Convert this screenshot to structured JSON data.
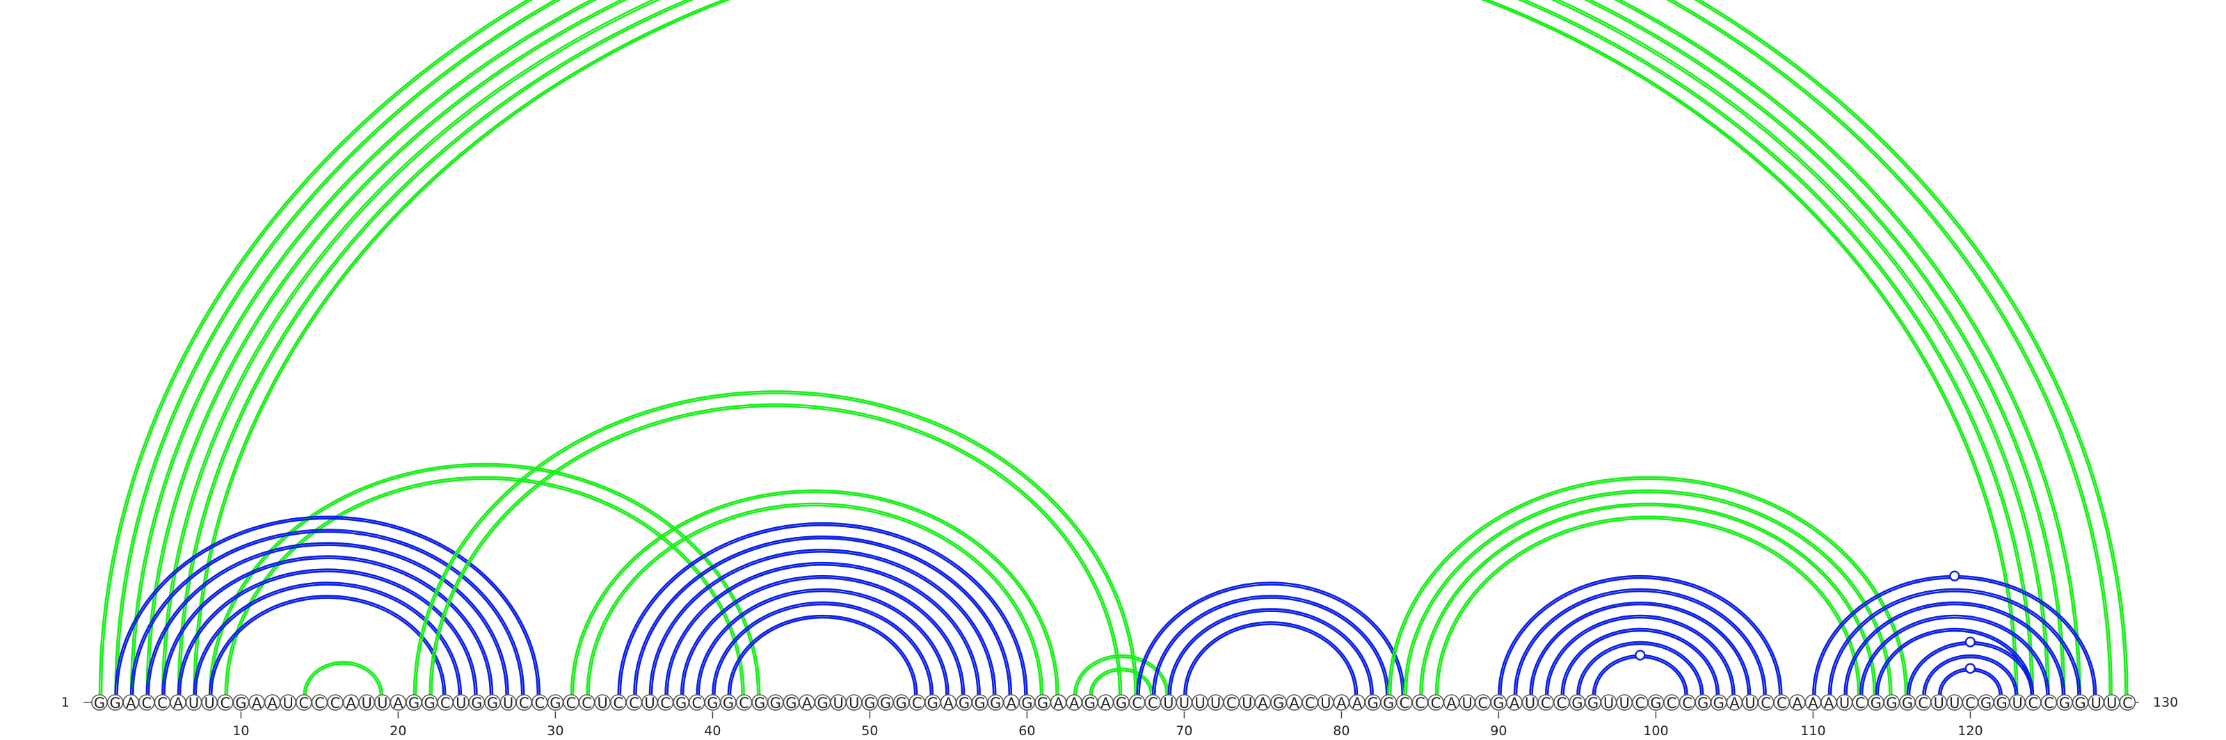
{
  "diagram": {
    "sequence": "GGACCAUUCGAAUCCCAUUAGGCUGGUCCGCCUCCUCGCGGCGGGAGUUGGGCGAGGGAGGAAGAGCCUUUUCUAGACUAAGGCCCAUCGAUCCGGUUCGCCGGAUCCAAAUCGGGCUUCGGUCCGGUUC",
    "start_label": "1",
    "end_label": "130",
    "tick_labels": [
      "10",
      "20",
      "30",
      "40",
      "50",
      "60",
      "70",
      "80",
      "90",
      "100",
      "110",
      "120"
    ],
    "colors": {
      "primary": "#0a1ee6",
      "secondary": "#1aef1a"
    },
    "arc_groups": [
      {
        "color": "secondary",
        "pairs": [
          [
            1,
            130
          ],
          [
            2,
            129
          ],
          [
            3,
            127
          ],
          [
            4,
            126
          ],
          [
            5,
            125
          ],
          [
            6,
            124
          ],
          [
            7,
            123
          ]
        ],
        "marker_on": [
          1,
          130
        ]
      },
      {
        "color": "secondary",
        "pairs": [
          [
            8,
            43
          ],
          [
            9,
            42
          ]
        ]
      },
      {
        "color": "secondary",
        "pairs": [
          [
            14,
            19
          ]
        ]
      },
      {
        "color": "primary",
        "pairs": [
          [
            2,
            29
          ],
          [
            3,
            28
          ],
          [
            4,
            27
          ],
          [
            5,
            26
          ],
          [
            6,
            25
          ],
          [
            7,
            24
          ],
          [
            8,
            23
          ]
        ]
      },
      {
        "color": "secondary",
        "pairs": [
          [
            21,
            67
          ],
          [
            22,
            66
          ]
        ]
      },
      {
        "color": "secondary",
        "pairs": [
          [
            31,
            62
          ],
          [
            32,
            61
          ]
        ]
      },
      {
        "color": "primary",
        "pairs": [
          [
            34,
            60
          ],
          [
            35,
            59
          ],
          [
            36,
            58
          ],
          [
            37,
            57
          ],
          [
            38,
            56
          ],
          [
            39,
            55
          ],
          [
            40,
            54
          ],
          [
            41,
            53
          ]
        ]
      },
      {
        "color": "secondary",
        "pairs": [
          [
            63,
            69
          ],
          [
            64,
            68
          ]
        ]
      },
      {
        "color": "primary",
        "pairs": [
          [
            67,
            84
          ],
          [
            68,
            83
          ],
          [
            69,
            82
          ],
          [
            70,
            81
          ]
        ]
      },
      {
        "color": "secondary",
        "pairs": [
          [
            83,
            116
          ],
          [
            84,
            115
          ],
          [
            85,
            114
          ],
          [
            86,
            113
          ]
        ]
      },
      {
        "color": "primary",
        "pairs": [
          [
            90,
            108
          ],
          [
            91,
            107
          ],
          [
            92,
            106
          ],
          [
            93,
            105
          ],
          [
            94,
            104
          ],
          [
            95,
            103
          ],
          [
            96,
            102
          ]
        ],
        "marker_on": [
          96,
          102
        ]
      },
      {
        "color": "primary",
        "pairs": [
          [
            110,
            128
          ],
          [
            111,
            127
          ],
          [
            112,
            126
          ],
          [
            113,
            125
          ],
          [
            114,
            124
          ]
        ],
        "marker_on": [
          110,
          128
        ]
      },
      {
        "color": "primary",
        "pairs": [
          [
            116,
            124
          ],
          [
            117,
            123
          ]
        ],
        "marker_on": [
          116,
          124
        ]
      },
      {
        "color": "primary",
        "pairs": [
          [
            118,
            122
          ]
        ],
        "marker_on": [
          118,
          122
        ]
      }
    ]
  }
}
